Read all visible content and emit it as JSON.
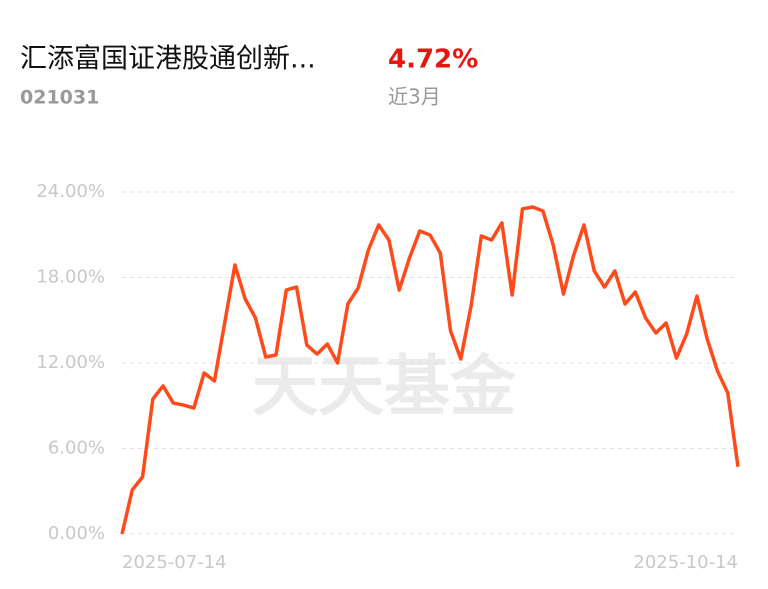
{
  "header": {
    "title": "汇添富国证港股通创新...",
    "change": "4.72%",
    "code": "021031",
    "period": "近3月"
  },
  "chart_data": {
    "type": "line",
    "watermark": "天天基金",
    "categories": [
      "2025-07-14",
      null,
      null,
      null,
      null,
      null,
      null,
      null,
      null,
      null,
      null,
      null,
      null,
      null,
      null,
      null,
      null,
      null,
      null,
      null,
      null,
      null,
      null,
      null,
      null,
      null,
      null,
      null,
      null,
      null,
      null,
      null,
      null,
      null,
      null,
      null,
      null,
      null,
      null,
      null,
      null,
      null,
      null,
      null,
      null,
      null,
      null,
      null,
      null,
      null,
      null,
      null,
      null,
      null,
      null,
      null,
      null,
      null,
      null,
      null,
      "2025-10-14"
    ],
    "series": [
      {
        "color": "#ff4a1a",
        "values": [
          0,
          3.09,
          4.0,
          9.47,
          10.39,
          9.19,
          9.05,
          8.84,
          11.3,
          10.74,
          14.81,
          18.88,
          16.49,
          15.16,
          12.42,
          12.56,
          17.12,
          17.33,
          13.26,
          12.63,
          13.33,
          12.0,
          16.14,
          17.26,
          19.93,
          21.69,
          20.63,
          17.12,
          19.37,
          21.26,
          20.98,
          19.72,
          14.25,
          12.28,
          16.0,
          20.91,
          20.63,
          21.83,
          16.77,
          22.81,
          22.95,
          22.67,
          20.28,
          16.84,
          19.58,
          21.69,
          18.46,
          17.33,
          18.46,
          16.14,
          16.98,
          15.16,
          14.11,
          14.81,
          12.35,
          14.04,
          16.7,
          13.68,
          11.44,
          9.9,
          4.72
        ]
      }
    ],
    "ylim": [
      0,
      24
    ],
    "yticks": [
      {
        "value": 0,
        "label": "0.00%"
      },
      {
        "value": 6,
        "label": "6.00%"
      },
      {
        "value": 12,
        "label": "12.00%"
      },
      {
        "value": 18,
        "label": "18.00%"
      },
      {
        "value": 24,
        "label": "24.00%"
      }
    ],
    "grid": true
  }
}
